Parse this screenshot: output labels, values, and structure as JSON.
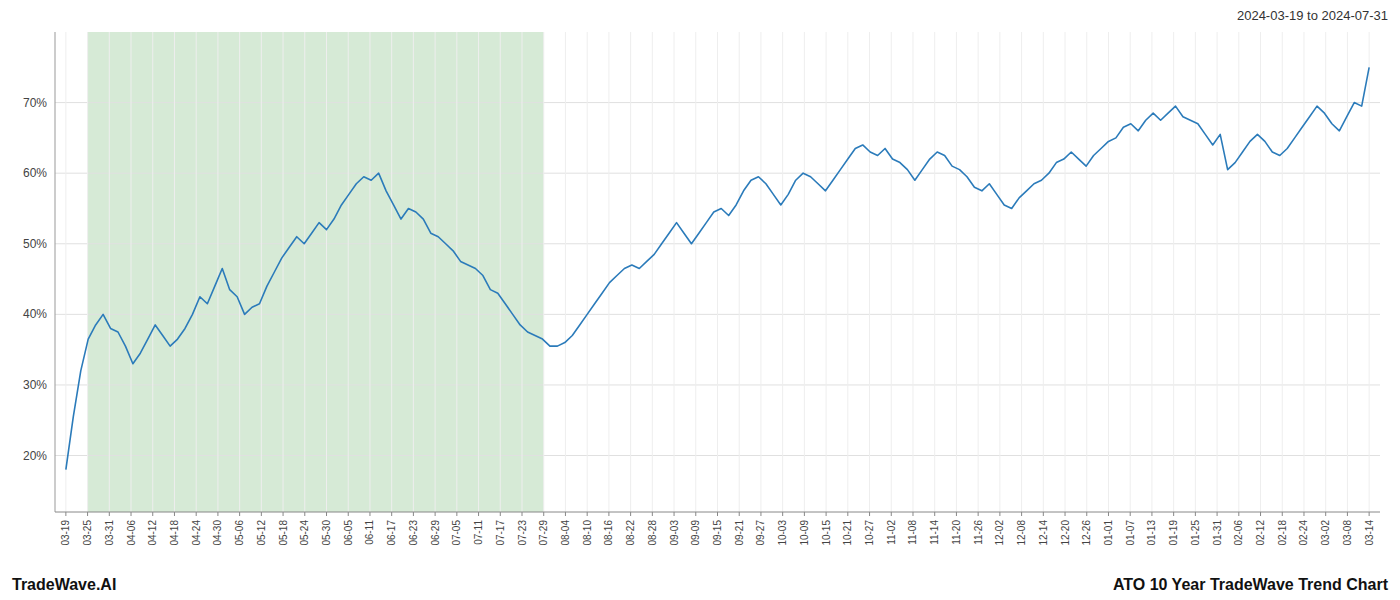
{
  "chart_data": {
    "type": "line",
    "title": "ATO 10 Year TradeWave Trend Chart",
    "subtitle": "2024-03-19 to 2024-07-31",
    "annotations": [
      "TradeWave.AI"
    ],
    "color": "#2b7bba",
    "grid": true,
    "ylim": [
      12,
      80
    ],
    "yticks": [
      {
        "value": 20,
        "label": "20%"
      },
      {
        "value": 30,
        "label": "30%"
      },
      {
        "value": 40,
        "label": "40%"
      },
      {
        "value": 50,
        "label": "50%"
      },
      {
        "value": 60,
        "label": "60%"
      },
      {
        "value": 70,
        "label": "70%"
      }
    ],
    "xticks": [
      "03-19",
      "03-25",
      "03-31",
      "04-06",
      "04-12",
      "04-18",
      "04-24",
      "04-30",
      "05-06",
      "05-12",
      "05-18",
      "05-24",
      "05-30",
      "06-05",
      "06-11",
      "06-17",
      "06-23",
      "06-29",
      "07-05",
      "07-11",
      "07-17",
      "07-23",
      "07-29",
      "08-04",
      "08-10",
      "08-16",
      "08-22",
      "08-28",
      "09-03",
      "09-09",
      "09-15",
      "09-21",
      "09-27",
      "10-03",
      "10-09",
      "10-15",
      "10-21",
      "10-27",
      "11-02",
      "11-08",
      "11-14",
      "11-20",
      "11-26",
      "12-02",
      "12-08",
      "12-14",
      "12-20",
      "12-26",
      "01-01",
      "01-07",
      "01-13",
      "01-19",
      "01-25",
      "01-31",
      "02-06",
      "02-12",
      "02-18",
      "02-24",
      "03-02",
      "03-08",
      "03-14"
    ],
    "shade": {
      "start": "03-25",
      "end": "07-29",
      "color": "#d6ead6"
    },
    "values": [
      18.0,
      25.5,
      32.0,
      36.5,
      38.5,
      40.0,
      38.0,
      37.5,
      35.5,
      33.0,
      34.5,
      36.5,
      38.5,
      37.0,
      35.5,
      36.5,
      38.0,
      40.0,
      42.5,
      41.5,
      44.0,
      46.5,
      43.5,
      42.5,
      40.0,
      41.0,
      41.5,
      44.0,
      46.0,
      48.0,
      49.5,
      51.0,
      50.0,
      51.5,
      53.0,
      52.0,
      53.5,
      55.5,
      57.0,
      58.5,
      59.5,
      59.0,
      60.0,
      57.5,
      55.5,
      53.5,
      55.0,
      54.5,
      53.5,
      51.5,
      51.0,
      50.0,
      49.0,
      47.5,
      47.0,
      46.5,
      45.5,
      43.5,
      43.0,
      41.5,
      40.0,
      38.5,
      37.5,
      37.0,
      36.5,
      35.5,
      35.5,
      36.0,
      37.0,
      38.5,
      40.0,
      41.5,
      43.0,
      44.5,
      45.5,
      46.5,
      47.0,
      46.5,
      47.5,
      48.5,
      50.0,
      51.5,
      53.0,
      51.5,
      50.0,
      51.5,
      53.0,
      54.5,
      55.0,
      54.0,
      55.5,
      57.5,
      59.0,
      59.5,
      58.5,
      57.0,
      55.5,
      57.0,
      59.0,
      60.0,
      59.5,
      58.5,
      57.5,
      59.0,
      60.5,
      62.0,
      63.5,
      64.0,
      63.0,
      62.5,
      63.5,
      62.0,
      61.5,
      60.5,
      59.0,
      60.5,
      62.0,
      63.0,
      62.5,
      61.0,
      60.5,
      59.5,
      58.0,
      57.5,
      58.5,
      57.0,
      55.5,
      55.0,
      56.5,
      57.5,
      58.5,
      59.0,
      60.0,
      61.5,
      62.0,
      63.0,
      62.0,
      61.0,
      62.5,
      63.5,
      64.5,
      65.0,
      66.5,
      67.0,
      66.0,
      67.5,
      68.5,
      67.5,
      68.5,
      69.5,
      68.0,
      67.5,
      67.0,
      65.5,
      64.0,
      65.5,
      60.5,
      61.5,
      63.0,
      64.5,
      65.5,
      64.5,
      63.0,
      62.5,
      63.5,
      65.0,
      66.5,
      68.0,
      69.5,
      68.5,
      67.0,
      66.0,
      68.0,
      70.0,
      69.5,
      75.0
    ]
  }
}
